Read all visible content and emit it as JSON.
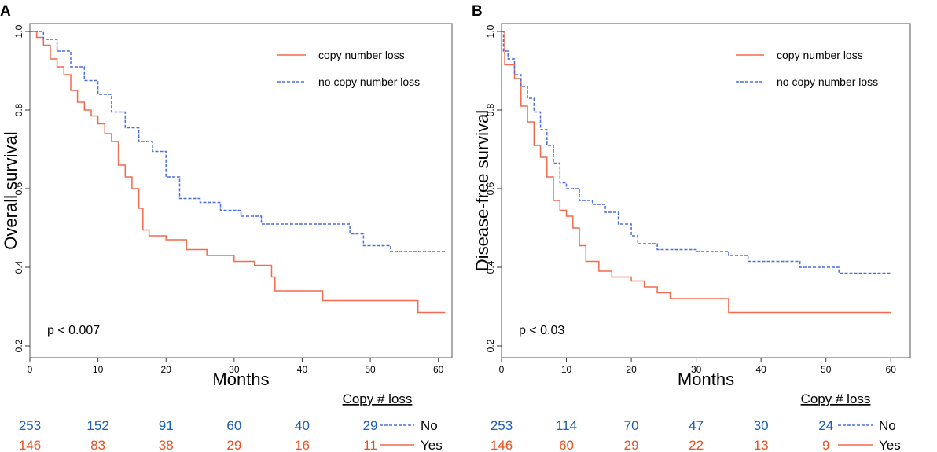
{
  "chart_data": [
    {
      "type": "line",
      "panel_label": "A",
      "title": "",
      "xlabel": "Months",
      "ylabel": "Overall survival",
      "xlim": [
        0,
        62
      ],
      "ylim": [
        0.17,
        1.02
      ],
      "x_ticks": [
        0,
        10,
        20,
        30,
        40,
        50,
        60
      ],
      "y_ticks": [
        0.2,
        0.4,
        0.6,
        0.8,
        1.0
      ],
      "y_tick_labels": [
        "0.2",
        "0.4",
        "0.6",
        "0.8",
        "1.0"
      ],
      "annotation": "p < 0.007",
      "legend_position": "top-right",
      "series": [
        {
          "name": "copy number loss",
          "color": "#f26a4f",
          "style": "solid",
          "points": [
            [
              0,
              1.0
            ],
            [
              1,
              0.985
            ],
            [
              2,
              0.965
            ],
            [
              3,
              0.93
            ],
            [
              4,
              0.91
            ],
            [
              5,
              0.89
            ],
            [
              6,
              0.85
            ],
            [
              7,
              0.82
            ],
            [
              8,
              0.8
            ],
            [
              9,
              0.785
            ],
            [
              10,
              0.765
            ],
            [
              11,
              0.74
            ],
            [
              12,
              0.72
            ],
            [
              13,
              0.66
            ],
            [
              14,
              0.63
            ],
            [
              15,
              0.6
            ],
            [
              16,
              0.55
            ],
            [
              16.6,
              0.495
            ],
            [
              17.5,
              0.48
            ],
            [
              20,
              0.47
            ],
            [
              23,
              0.445
            ],
            [
              26,
              0.43
            ],
            [
              30,
              0.415
            ],
            [
              33,
              0.405
            ],
            [
              35.5,
              0.375
            ],
            [
              36,
              0.34
            ],
            [
              43,
              0.315
            ],
            [
              57,
              0.285
            ],
            [
              61,
              0.285
            ]
          ]
        },
        {
          "name": "no copy number loss",
          "color": "#4a6ee0",
          "style": "dashed",
          "points": [
            [
              0,
              1.0
            ],
            [
              2,
              0.98
            ],
            [
              4,
              0.95
            ],
            [
              6,
              0.91
            ],
            [
              8,
              0.875
            ],
            [
              10,
              0.84
            ],
            [
              12,
              0.795
            ],
            [
              14,
              0.755
            ],
            [
              16,
              0.72
            ],
            [
              18,
              0.695
            ],
            [
              20,
              0.63
            ],
            [
              22,
              0.575
            ],
            [
              25,
              0.565
            ],
            [
              28,
              0.545
            ],
            [
              31,
              0.53
            ],
            [
              34,
              0.51
            ],
            [
              40,
              0.51
            ],
            [
              47,
              0.485
            ],
            [
              49,
              0.455
            ],
            [
              53,
              0.44
            ],
            [
              61,
              0.44
            ]
          ]
        }
      ],
      "risk_table": {
        "title": "Copy # loss",
        "times": [
          0,
          10,
          20,
          30,
          40,
          50
        ],
        "rows": [
          {
            "label": "No",
            "color": "#1a5fb4",
            "values": [
              "253",
              "152",
              "91",
              "60",
              "40",
              "29"
            ]
          },
          {
            "label": "Yes",
            "color": "#e8501f",
            "values": [
              "146",
              "83",
              "38",
              "29",
              "16",
              "11"
            ]
          }
        ]
      }
    },
    {
      "type": "line",
      "panel_label": "B",
      "title": "",
      "xlabel": "Months",
      "ylabel": "Disease-free survival",
      "xlim": [
        0,
        63
      ],
      "ylim": [
        0.17,
        1.02
      ],
      "x_ticks": [
        0,
        10,
        20,
        30,
        40,
        50,
        60
      ],
      "y_ticks": [
        0.2,
        0.4,
        0.6,
        0.8,
        1.0
      ],
      "y_tick_labels": [
        "0.2",
        "0.4",
        "0.6",
        "0.8",
        "1.0"
      ],
      "annotation": "p < 0.03",
      "legend_position": "top-right",
      "series": [
        {
          "name": "copy number loss",
          "color": "#f26a4f",
          "style": "solid",
          "points": [
            [
              0,
              1.0
            ],
            [
              0.5,
              0.915
            ],
            [
              2,
              0.88
            ],
            [
              3,
              0.81
            ],
            [
              4,
              0.77
            ],
            [
              5,
              0.71
            ],
            [
              6,
              0.68
            ],
            [
              7,
              0.63
            ],
            [
              8,
              0.57
            ],
            [
              9,
              0.545
            ],
            [
              10,
              0.53
            ],
            [
              11,
              0.5
            ],
            [
              12,
              0.455
            ],
            [
              13,
              0.415
            ],
            [
              15,
              0.39
            ],
            [
              17,
              0.375
            ],
            [
              20,
              0.365
            ],
            [
              22,
              0.35
            ],
            [
              24,
              0.335
            ],
            [
              26,
              0.32
            ],
            [
              35,
              0.285
            ],
            [
              60,
              0.285
            ]
          ]
        },
        {
          "name": "no copy number loss",
          "color": "#4a6ee0",
          "style": "dashed",
          "points": [
            [
              0,
              1.0
            ],
            [
              0.3,
              0.95
            ],
            [
              1,
              0.93
            ],
            [
              2,
              0.89
            ],
            [
              3,
              0.86
            ],
            [
              4,
              0.83
            ],
            [
              5,
              0.795
            ],
            [
              6,
              0.75
            ],
            [
              7,
              0.71
            ],
            [
              8,
              0.665
            ],
            [
              9,
              0.615
            ],
            [
              10,
              0.6
            ],
            [
              12,
              0.57
            ],
            [
              14,
              0.56
            ],
            [
              16,
              0.54
            ],
            [
              18,
              0.51
            ],
            [
              20,
              0.48
            ],
            [
              21,
              0.46
            ],
            [
              24,
              0.445
            ],
            [
              30,
              0.44
            ],
            [
              35,
              0.43
            ],
            [
              38,
              0.415
            ],
            [
              46,
              0.4
            ],
            [
              52,
              0.385
            ],
            [
              60,
              0.385
            ]
          ]
        }
      ],
      "risk_table": {
        "title": "Copy # loss",
        "times": [
          0,
          10,
          20,
          30,
          40,
          50
        ],
        "rows": [
          {
            "label": "No",
            "color": "#1a5fb4",
            "values": [
              "253",
              "114",
              "70",
              "47",
              "30",
              "24"
            ]
          },
          {
            "label": "Yes",
            "color": "#e8501f",
            "values": [
              "146",
              "60",
              "29",
              "22",
              "13",
              "9"
            ]
          }
        ]
      }
    }
  ]
}
